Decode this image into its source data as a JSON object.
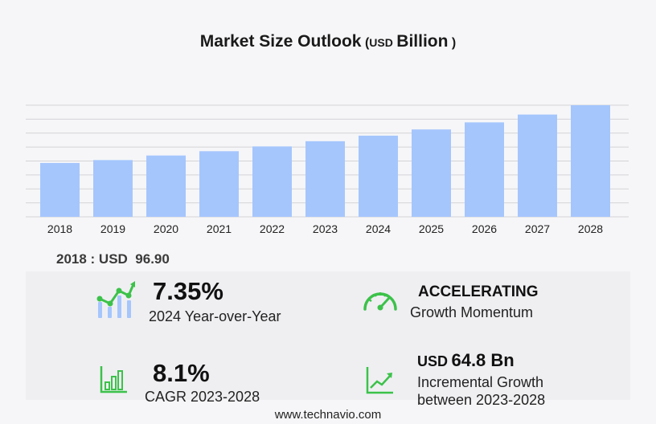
{
  "title": {
    "main": "Market Size Outlook",
    "open_paren": "(",
    "unit": "USD",
    "suffix": "Billion",
    "close_paren": ")"
  },
  "base_year": {
    "label": "2018 : USD",
    "value": "96.90"
  },
  "stats": {
    "yoy": {
      "value": "7.35%",
      "label": "2024 Year-over-Year"
    },
    "momentum": {
      "value": "ACCELERATING",
      "label": "Growth Momentum"
    },
    "cagr": {
      "value": "8.1%",
      "label": "CAGR 2023-2028"
    },
    "incremental": {
      "currency": "USD",
      "value": "64.8 Bn",
      "label_line1": "Incremental Growth",
      "label_line2": "between 2023-2028"
    }
  },
  "colors": {
    "bar": "#a5c6fd",
    "icon_green": "#3cc24a",
    "icon_blue": "#a5c6fd",
    "grid": "#d4d4d8"
  },
  "icons": {
    "yoy": "growth-chart-icon",
    "momentum": "speedometer-icon",
    "cagr": "bar-chart-icon",
    "incremental": "trend-line-icon"
  },
  "footer": "www.technavio.com",
  "chart_data": {
    "type": "bar",
    "categories": [
      "2018",
      "2019",
      "2020",
      "2021",
      "2022",
      "2023",
      "2024",
      "2025",
      "2026",
      "2027",
      "2028"
    ],
    "values": [
      96.9,
      102.1,
      110.3,
      118.0,
      126.6,
      136.0,
      146.0,
      157.2,
      169.9,
      184.0,
      200.8
    ],
    "title": "Market Size Outlook (USD Billion)",
    "ylim": [
      0,
      200.8
    ],
    "grid": true,
    "legend": "none"
  }
}
